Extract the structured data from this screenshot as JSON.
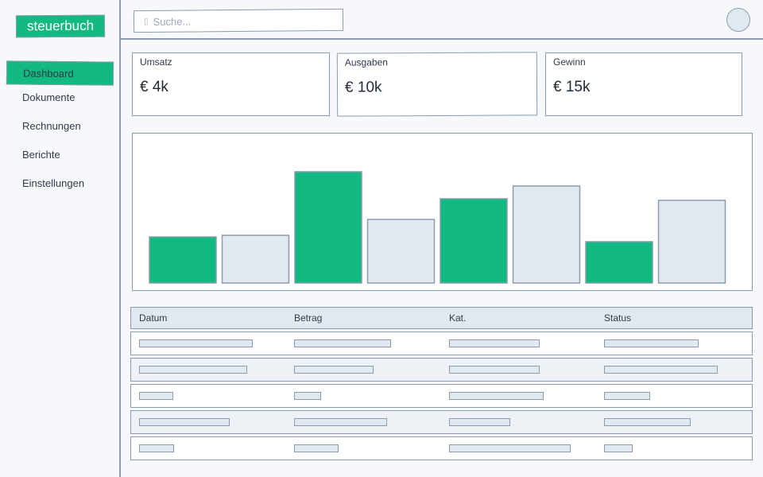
{
  "app": {
    "logo": "steuerbuch"
  },
  "sidebar": {
    "items": [
      {
        "label": "Dashboard",
        "active": true
      },
      {
        "label": "Dokumente",
        "active": false
      },
      {
        "label": "Rechnungen",
        "active": false
      },
      {
        "label": "Berichte",
        "active": false
      },
      {
        "label": "Einstellungen",
        "active": false
      }
    ]
  },
  "header": {
    "search": {
      "icon": "search-icon",
      "placeholder": "Suche..."
    },
    "avatar": "user-avatar"
  },
  "kpis": [
    {
      "label": "Umsatz",
      "value": "€ 4k"
    },
    {
      "label": "Ausgaben",
      "value": "€ 10k"
    },
    {
      "label": "Gewinn",
      "value": "€ 15k"
    }
  ],
  "chart_data": {
    "type": "bar",
    "values": [
      0.29,
      0.3,
      0.7,
      0.4,
      0.53,
      0.61,
      0.26,
      0.52
    ],
    "highlight": [
      true,
      false,
      true,
      false,
      true,
      false,
      true,
      false
    ],
    "colors": {
      "highlight": "#12b981",
      "muted": "#e2e8f0",
      "stroke": "#8a9bb0"
    },
    "title": "",
    "xlabel": "",
    "ylabel": ""
  },
  "table": {
    "columns": [
      "Datum",
      "Betrag",
      "Kat.",
      "Status"
    ],
    "rows_note_placeholder_widths": [
      [
        0.84,
        0.72,
        0.67,
        0.7
      ],
      [
        0.8,
        0.59,
        0.67,
        0.84
      ],
      [
        0.25,
        0.2,
        0.7,
        0.34
      ],
      [
        0.67,
        0.69,
        0.45,
        0.64
      ],
      [
        0.26,
        0.33,
        0.9,
        0.21
      ]
    ]
  },
  "colors": {
    "accent": "#12b981",
    "border": "#8a9bb0",
    "muted": "#e2e8f0"
  }
}
